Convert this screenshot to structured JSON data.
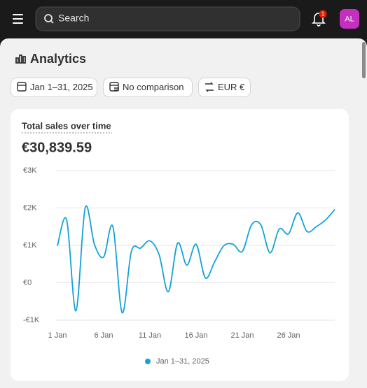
{
  "top_bar": {
    "search_placeholder": "Search",
    "notification_count": 1,
    "avatar_initials": "AL"
  },
  "page": {
    "title": "Analytics",
    "filters": [
      "Jan 1–31, 2025",
      "No comparison",
      "EUR €"
    ]
  },
  "chart_data": {
    "type": "line",
    "title": "Total sales over time",
    "total": "€30,839.59",
    "categories": [
      "1 Jan",
      null,
      null,
      null,
      null,
      "6 Jan",
      null,
      null,
      null,
      null,
      "11 Jan",
      null,
      null,
      null,
      null,
      "16 Jan",
      null,
      null,
      null,
      null,
      "21 Jan",
      null,
      null,
      null,
      null,
      "26 Jan",
      null,
      null,
      null,
      null,
      null
    ],
    "series": [
      {
        "name": "Jan 1–31, 2025",
        "color": "#13a3d9",
        "values": [
          990,
          1680,
          -750,
          2000,
          1030,
          690,
          1500,
          -800,
          840,
          930,
          1120,
          750,
          -240,
          1060,
          470,
          1030,
          130,
          560,
          990,
          1030,
          840,
          1550,
          1550,
          800,
          1440,
          1310,
          1870,
          1370,
          1500,
          1680,
          1960
        ]
      }
    ],
    "ylim": [
      -1000,
      3000
    ],
    "yticks": [
      {
        "value": -1000,
        "label": "-€1K"
      },
      {
        "value": 0,
        "label": "€0"
      },
      {
        "value": 1000,
        "label": "€1K"
      },
      {
        "value": 2000,
        "label": "€2K"
      },
      {
        "value": 3000,
        "label": "€3K"
      }
    ],
    "grid": true
  }
}
